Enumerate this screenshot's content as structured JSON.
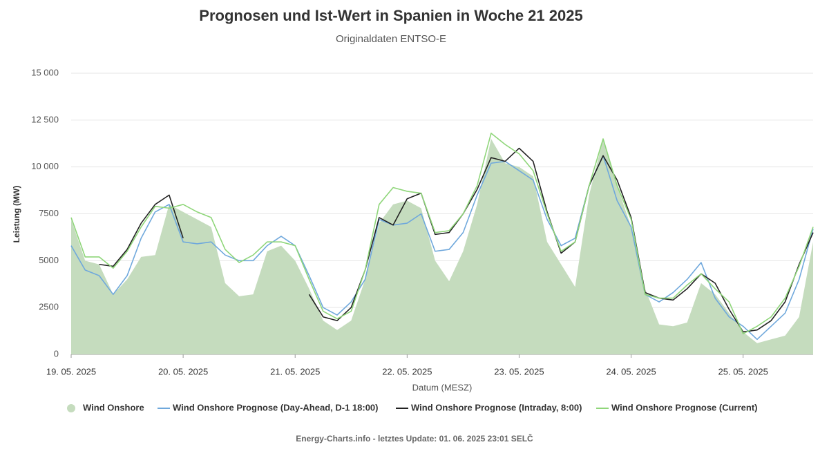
{
  "chart_data": {
    "type": "line",
    "title": "Prognosen und Ist-Wert in Spanien in Woche 21 2025",
    "subtitle": "Originaldaten ENTSO-E",
    "y_label": "Leistung (MW)",
    "x_label": "Datum (MESZ)",
    "footer": "Energy-Charts.info - letztes Update: 01. 06. 2025 23:01 SELČ",
    "x": [
      "2025-05-19T00:00",
      "2025-05-19T03:00",
      "2025-05-19T06:00",
      "2025-05-19T09:00",
      "2025-05-19T12:00",
      "2025-05-19T15:00",
      "2025-05-19T18:00",
      "2025-05-19T21:00",
      "2025-05-20T00:00",
      "2025-05-20T03:00",
      "2025-05-20T06:00",
      "2025-05-20T09:00",
      "2025-05-20T12:00",
      "2025-05-20T15:00",
      "2025-05-20T18:00",
      "2025-05-20T21:00",
      "2025-05-21T00:00",
      "2025-05-21T03:00",
      "2025-05-21T06:00",
      "2025-05-21T09:00",
      "2025-05-21T12:00",
      "2025-05-21T15:00",
      "2025-05-21T18:00",
      "2025-05-21T21:00",
      "2025-05-22T00:00",
      "2025-05-22T03:00",
      "2025-05-22T06:00",
      "2025-05-22T09:00",
      "2025-05-22T12:00",
      "2025-05-22T15:00",
      "2025-05-22T18:00",
      "2025-05-22T21:00",
      "2025-05-23T00:00",
      "2025-05-23T03:00",
      "2025-05-23T06:00",
      "2025-05-23T09:00",
      "2025-05-23T12:00",
      "2025-05-23T15:00",
      "2025-05-23T18:00",
      "2025-05-23T21:00",
      "2025-05-24T00:00",
      "2025-05-24T03:00",
      "2025-05-24T06:00",
      "2025-05-24T09:00",
      "2025-05-24T12:00",
      "2025-05-24T15:00",
      "2025-05-24T18:00",
      "2025-05-24T21:00",
      "2025-05-25T00:00",
      "2025-05-25T03:00",
      "2025-05-25T06:00",
      "2025-05-25T09:00",
      "2025-05-25T12:00",
      "2025-05-25T15:00"
    ],
    "xlim": [
      "2025-05-19T00:00",
      "2025-05-25T15:00"
    ],
    "xticks": [
      {
        "value": "2025-05-19T00:00",
        "label": "19. 05. 2025"
      },
      {
        "value": "2025-05-20T00:00",
        "label": "20. 05. 2025"
      },
      {
        "value": "2025-05-21T00:00",
        "label": "21. 05. 2025"
      },
      {
        "value": "2025-05-22T00:00",
        "label": "22. 05. 2025"
      },
      {
        "value": "2025-05-23T00:00",
        "label": "23. 05. 2025"
      },
      {
        "value": "2025-05-24T00:00",
        "label": "24. 05. 2025"
      },
      {
        "value": "2025-05-25T00:00",
        "label": "25. 05. 2025"
      }
    ],
    "ylim": [
      0,
      15000
    ],
    "yticks": [
      0,
      2500,
      5000,
      7500,
      {
        "value": 10000,
        "label": "10 000"
      },
      {
        "value": 12500,
        "label": "12 500"
      },
      {
        "value": 15000,
        "label": "15 000"
      }
    ],
    "grid": true,
    "legend": "bottom",
    "series": [
      {
        "name": "Wind Onshore",
        "kind": "area",
        "color": "#c5dcbe",
        "values": [
          7200,
          5000,
          4800,
          3200,
          4000,
          5200,
          5300,
          8000,
          7600,
          7200,
          6800,
          3800,
          3100,
          3200,
          5500,
          5800,
          5000,
          3500,
          1800,
          1300,
          1800,
          4000,
          7000,
          8000,
          8200,
          7800,
          5000,
          3900,
          5500,
          8000,
          11500,
          10200,
          10000,
          9500,
          6000,
          4800,
          3600,
          8500,
          11500,
          9000,
          6800,
          3500,
          1600,
          1500,
          1700,
          3800,
          3200,
          2200,
          1200,
          600,
          800,
          1000,
          2000,
          6000
        ]
      },
      {
        "name": "Wind Onshore Prognose (Day-Ahead, D-1 18:00)",
        "kind": "line",
        "color": "#6fa8dc",
        "values": [
          5800,
          4500,
          4200,
          3200,
          4200,
          6200,
          7600,
          8000,
          6000,
          5900,
          6000,
          5300,
          5000,
          5000,
          5800,
          6300,
          5800,
          4200,
          2500,
          2100,
          2800,
          4000,
          7200,
          6900,
          7000,
          7500,
          5500,
          5600,
          6500,
          8500,
          10200,
          10300,
          9800,
          9300,
          7200,
          5800,
          6200,
          9000,
          10600,
          8200,
          6800,
          3200,
          2800,
          3300,
          4000,
          4900,
          3000,
          2000,
          1500,
          800,
          1500,
          2200,
          4000,
          6700
        ]
      },
      {
        "name": "Wind Onshore Prognose (Intraday, 8:00)",
        "kind": "line",
        "color": "#222222",
        "values": [
          null,
          null,
          4800,
          4700,
          5600,
          7000,
          8000,
          8500,
          6200,
          null,
          null,
          null,
          null,
          null,
          null,
          null,
          null,
          3200,
          2000,
          1800,
          2500,
          4500,
          7300,
          6900,
          8300,
          8600,
          6400,
          6500,
          7500,
          8800,
          10500,
          10300,
          11000,
          10300,
          7600,
          5400,
          6000,
          9000,
          10600,
          9300,
          7300,
          3300,
          3000,
          2900,
          3500,
          4300,
          3800,
          2400,
          1200,
          1300,
          1800,
          2800,
          4800,
          6500
        ]
      },
      {
        "name": "Wind Onshore Prognose (Current)",
        "kind": "line",
        "color": "#8fd67a",
        "values": [
          7300,
          5200,
          5200,
          4600,
          5500,
          6800,
          7900,
          7800,
          8000,
          7600,
          7300,
          5600,
          4900,
          5300,
          6000,
          6000,
          5800,
          4000,
          2300,
          1900,
          2300,
          4500,
          8000,
          8900,
          8700,
          8600,
          6500,
          6600,
          7500,
          9000,
          11800,
          11200,
          10700,
          9800,
          7500,
          5500,
          6000,
          9000,
          11500,
          9000,
          7200,
          3200,
          3000,
          3000,
          3700,
          4300,
          3500,
          2800,
          1100,
          1500,
          2000,
          3000,
          4700,
          6800
        ]
      }
    ]
  }
}
